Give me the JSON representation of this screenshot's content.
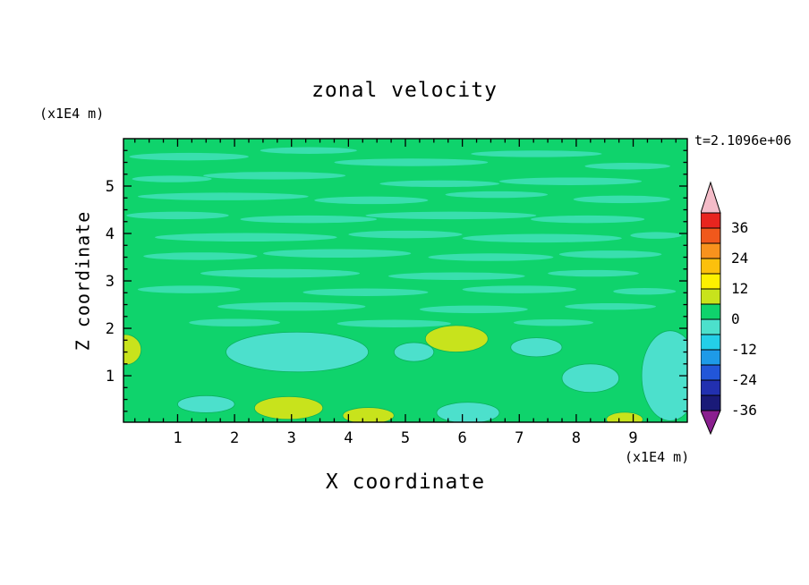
{
  "chart_data": {
    "type": "heatmap",
    "subtype": "filled-contour",
    "title": "zonal velocity",
    "annotation": "t=2.1096e+06",
    "xlabel": "X coordinate",
    "ylabel": "Z coordinate",
    "x_units_label": "(x1E4 m)",
    "y_units_label": "(x1E4 m)",
    "xlim": [
      0.05,
      9.95
    ],
    "ylim": [
      0.02,
      6.0
    ],
    "xticks": [
      1,
      2,
      3,
      4,
      5,
      6,
      7,
      8,
      9
    ],
    "yticks": [
      1,
      2,
      3,
      4,
      5
    ],
    "minor_tick_step": 0.25,
    "grid": false,
    "colorbar": {
      "position": "right",
      "tick_labels": [
        36,
        24,
        12,
        0,
        -12,
        -24,
        -36
      ],
      "contour_interval": 6,
      "segment_colors_top_to_bottom": [
        "#e8251f",
        "#f0581c",
        "#f8921d",
        "#fcc00c",
        "#fdf000",
        "#c8e31c",
        "#0fd36c",
        "#4ce0cc",
        "#24cfe8",
        "#1e9ae8",
        "#2256d8",
        "#2230b0",
        "#1a1a78"
      ],
      "above_range_arrow_color": "#f4bcc8",
      "below_range_arrow_color": "#8a1f8f"
    },
    "field": {
      "description": "Zonal velocity field is mostly within the 0 to 6 contour band (green). Thin wavy near-zero streaks fill the upper half; a few -6 to 0 turquoise patches sit in the lower third; small 6 to 12 yellow-green patches appear near the bottom edge.",
      "background_band": "0 to 6",
      "background_color": "#0fd36c",
      "streak_color": "#39dfae",
      "negative_patch_band": "-6 to 0",
      "negative_patch_color": "#4ce0cc",
      "positive_patch_band": "6 to 12",
      "positive_patch_color": "#c8e31c",
      "patch_outline_color": "#0bb25b",
      "streaks": [
        [
          1.2,
          5.62,
          1.05,
          0.08
        ],
        [
          3.3,
          5.75,
          0.85,
          0.07
        ],
        [
          5.1,
          5.5,
          1.35,
          0.08
        ],
        [
          7.3,
          5.68,
          1.15,
          0.07
        ],
        [
          8.9,
          5.42,
          0.75,
          0.07
        ],
        [
          0.9,
          5.15,
          0.7,
          0.07
        ],
        [
          2.7,
          5.22,
          1.25,
          0.08
        ],
        [
          5.6,
          5.05,
          1.05,
          0.07
        ],
        [
          7.9,
          5.1,
          1.25,
          0.08
        ],
        [
          1.8,
          4.78,
          1.5,
          0.08
        ],
        [
          4.4,
          4.7,
          1.0,
          0.08
        ],
        [
          6.6,
          4.82,
          0.9,
          0.07
        ],
        [
          8.8,
          4.72,
          0.85,
          0.08
        ],
        [
          1.0,
          4.38,
          0.9,
          0.08
        ],
        [
          3.3,
          4.3,
          1.2,
          0.08
        ],
        [
          5.8,
          4.38,
          1.5,
          0.08
        ],
        [
          8.2,
          4.3,
          1.0,
          0.08
        ],
        [
          2.2,
          3.92,
          1.6,
          0.09
        ],
        [
          5.0,
          3.98,
          1.0,
          0.08
        ],
        [
          7.4,
          3.9,
          1.4,
          0.09
        ],
        [
          9.4,
          3.96,
          0.45,
          0.07
        ],
        [
          1.4,
          3.52,
          1.0,
          0.08
        ],
        [
          3.8,
          3.58,
          1.3,
          0.09
        ],
        [
          6.5,
          3.5,
          1.1,
          0.08
        ],
        [
          8.6,
          3.56,
          0.9,
          0.08
        ],
        [
          2.8,
          3.16,
          1.4,
          0.09
        ],
        [
          5.9,
          3.1,
          1.2,
          0.08
        ],
        [
          8.3,
          3.16,
          0.8,
          0.07
        ],
        [
          1.2,
          2.82,
          0.9,
          0.08
        ],
        [
          4.3,
          2.76,
          1.1,
          0.08
        ],
        [
          7.0,
          2.82,
          1.0,
          0.08
        ],
        [
          9.2,
          2.78,
          0.55,
          0.07
        ],
        [
          3.0,
          2.46,
          1.3,
          0.09
        ],
        [
          6.2,
          2.4,
          0.95,
          0.08
        ],
        [
          8.6,
          2.46,
          0.8,
          0.07
        ],
        [
          2.0,
          2.12,
          0.8,
          0.08
        ],
        [
          4.8,
          2.1,
          1.0,
          0.08
        ],
        [
          7.6,
          2.12,
          0.7,
          0.07
        ]
      ],
      "negative_patches": [
        [
          3.1,
          1.5,
          1.25,
          0.42
        ],
        [
          5.15,
          1.5,
          0.35,
          0.2
        ],
        [
          8.25,
          0.95,
          0.5,
          0.3
        ],
        [
          9.65,
          1.0,
          0.5,
          0.95
        ],
        [
          6.1,
          0.22,
          0.55,
          0.22
        ],
        [
          1.5,
          0.4,
          0.5,
          0.18
        ],
        [
          7.3,
          1.6,
          0.45,
          0.2
        ]
      ],
      "positive_patches": [
        [
          2.95,
          0.32,
          0.6,
          0.24
        ],
        [
          4.35,
          0.16,
          0.45,
          0.17
        ],
        [
          5.9,
          1.78,
          0.55,
          0.28
        ],
        [
          0.08,
          1.55,
          0.28,
          0.32
        ],
        [
          8.85,
          0.08,
          0.32,
          0.15
        ]
      ]
    }
  }
}
